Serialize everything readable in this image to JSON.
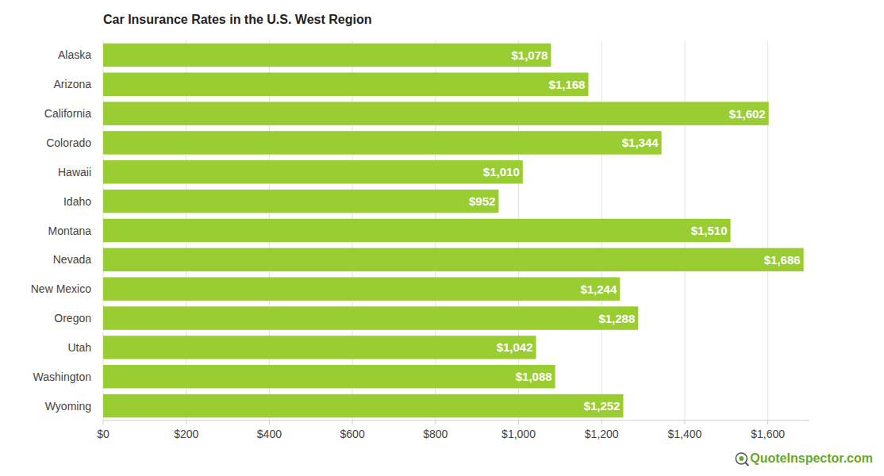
{
  "chart_data": {
    "type": "bar",
    "orientation": "horizontal",
    "title": "Car Insurance Rates in the U.S. West Region",
    "categories": [
      "Alaska",
      "Arizona",
      "California",
      "Colorado",
      "Hawaii",
      "Idaho",
      "Montana",
      "Nevada",
      "New Mexico",
      "Oregon",
      "Utah",
      "Washington",
      "Wyoming"
    ],
    "values": [
      1078,
      1168,
      1602,
      1344,
      1010,
      952,
      1510,
      1686,
      1244,
      1288,
      1042,
      1088,
      1252
    ],
    "value_labels": [
      "$1,078",
      "$1,168",
      "$1,602",
      "$1,344",
      "$1,010",
      "$952",
      "$1,510",
      "$1,686",
      "$1,244",
      "$1,288",
      "$1,042",
      "$1,088",
      "$1,252"
    ],
    "color": "#9acd32",
    "xlim": [
      0,
      1700
    ],
    "xticks": [
      {
        "value": 0,
        "label": "$0"
      },
      {
        "value": 200,
        "label": "$200"
      },
      {
        "value": 400,
        "label": "$400"
      },
      {
        "value": 600,
        "label": "$600"
      },
      {
        "value": 800,
        "label": "$800"
      },
      {
        "value": 1000,
        "label": "$1,000"
      },
      {
        "value": 1200,
        "label": "$1,200"
      },
      {
        "value": 1400,
        "label": "$1,400"
      },
      {
        "value": 1600,
        "label": "$1,600"
      }
    ],
    "grid": true,
    "data_labels": true,
    "annotations": [
      "QuoteInspector.com"
    ]
  }
}
